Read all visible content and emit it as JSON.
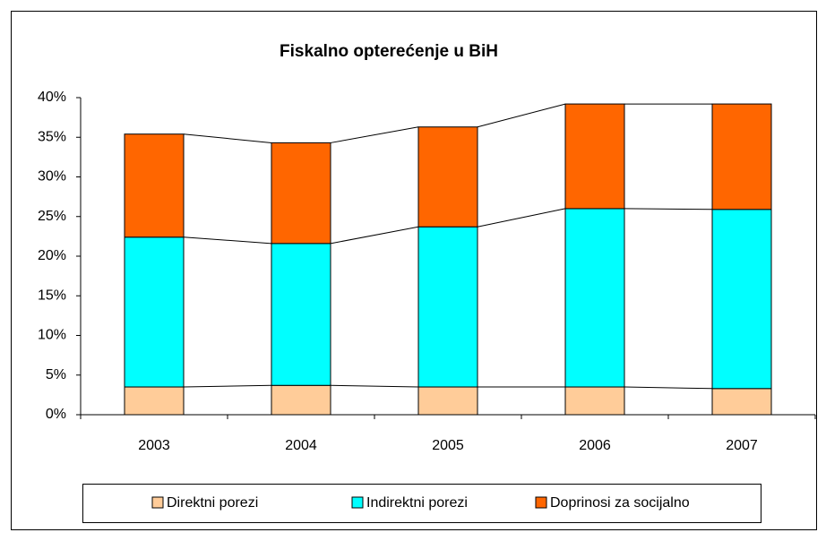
{
  "chart_data": {
    "type": "stacked_bar",
    "title": "Fiskalno opterećenje u BiH",
    "categories": [
      "2003",
      "2004",
      "2005",
      "2006",
      "2007"
    ],
    "series": [
      {
        "name": "Direktni porezi",
        "color": "#FFCC99",
        "values": [
          3.5,
          3.7,
          3.5,
          3.5,
          3.3
        ]
      },
      {
        "name": "Indirektni porezi",
        "color": "#00FFFF",
        "values": [
          18.9,
          17.9,
          20.2,
          22.5,
          22.6
        ]
      },
      {
        "name": "Doprinosi za socijalno",
        "color": "#FF6600",
        "values": [
          13.0,
          12.7,
          12.6,
          13.2,
          13.3
        ]
      }
    ],
    "ylim": [
      0,
      40
    ],
    "yticks": [
      {
        "value": 0,
        "label": "0%"
      },
      {
        "value": 5,
        "label": "5%"
      },
      {
        "value": 10,
        "label": "10%"
      },
      {
        "value": 15,
        "label": "15%"
      },
      {
        "value": 20,
        "label": "20%"
      },
      {
        "value": 25,
        "label": "25%"
      },
      {
        "value": 30,
        "label": "30%"
      },
      {
        "value": 35,
        "label": "35%"
      },
      {
        "value": 40,
        "label": "40%"
      }
    ],
    "series_lines": true,
    "legend": "bottom"
  }
}
